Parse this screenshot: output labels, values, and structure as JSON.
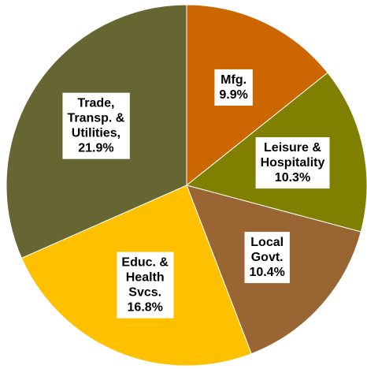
{
  "chart_data": {
    "type": "pie",
    "categories": [
      [
        "Mfg."
      ],
      [
        "Leisure &",
        "Hospitality"
      ],
      [
        "Local",
        "Govt."
      ],
      [
        "Educ. &",
        "Health",
        "Svcs."
      ],
      [
        "Trade,",
        "Transp. &",
        "Utilities,"
      ]
    ],
    "values": [
      9.9,
      10.3,
      10.4,
      16.8,
      21.9
    ],
    "value_labels": [
      "9.9%",
      "10.3%",
      "10.4%",
      "16.8%",
      "21.9%"
    ],
    "colors": [
      "#cc6600",
      "#808000",
      "#996633",
      "#ffc000",
      "#666633"
    ]
  }
}
